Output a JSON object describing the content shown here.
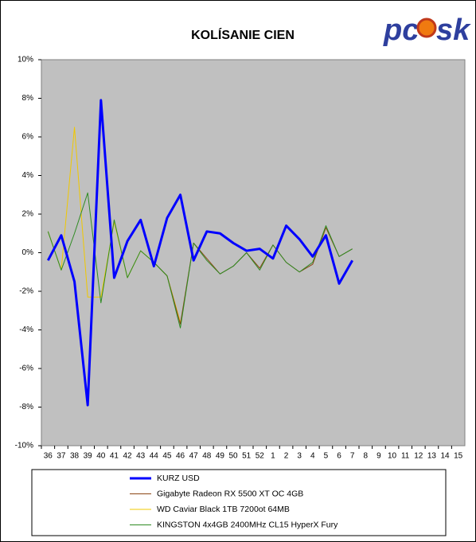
{
  "logo": [
    "pc",
    "sk"
  ],
  "chart_data": {
    "type": "line",
    "title": "KOLÍSANIE CIEN",
    "categories": [
      "36",
      "37",
      "38",
      "39",
      "40",
      "41",
      "42",
      "43",
      "44",
      "45",
      "46",
      "47",
      "48",
      "49",
      "50",
      "51",
      "52",
      "1",
      "2",
      "3",
      "4",
      "5",
      "6",
      "7",
      "8",
      "9",
      "10",
      "11",
      "12",
      "13",
      "14",
      "15"
    ],
    "ylim": [
      -10,
      10
    ],
    "yticks": [
      {
        "value": -10,
        "label": "-10%"
      },
      {
        "value": -8,
        "label": "-8%"
      },
      {
        "value": -6,
        "label": "-6%"
      },
      {
        "value": -4,
        "label": "-4%"
      },
      {
        "value": -2,
        "label": "-2%"
      },
      {
        "value": 0,
        "label": "0%"
      },
      {
        "value": 2,
        "label": "2%"
      },
      {
        "value": 4,
        "label": "4%"
      },
      {
        "value": 6,
        "label": "6%"
      },
      {
        "value": 8,
        "label": "8%"
      },
      {
        "value": 10,
        "label": "10%"
      }
    ],
    "series": [
      {
        "name": "KURZ USD",
        "color": "#0000ff",
        "width": 3,
        "values": [
          -0.4,
          0.9,
          -1.5,
          -7.9,
          7.9,
          -1.3,
          0.6,
          1.7,
          -0.7,
          1.8,
          3.0,
          -0.4,
          1.1,
          1.0,
          0.5,
          0.1,
          0.2,
          -0.3,
          1.4,
          0.7,
          -0.2,
          0.9,
          -1.6,
          -0.4,
          null,
          null,
          null,
          null,
          null,
          null,
          null,
          null
        ]
      },
      {
        "name": "Gigabyte Radeon RX 5500 XT OC 4GB",
        "color": "#8b4513",
        "width": 1,
        "values": [
          null,
          null,
          null,
          null,
          null,
          null,
          null,
          null,
          -0.5,
          -1.2,
          -3.7,
          0.5,
          -0.3,
          -1.1,
          -0.7,
          0.0,
          -0.8,
          0.4,
          -0.5,
          -1.0,
          -0.6,
          1.3,
          -0.2,
          0.2,
          null,
          null,
          null,
          null,
          null,
          null,
          null,
          null
        ]
      },
      {
        "name": "WD Caviar Black 1TB 7200ot 64MB",
        "color": "#f0c800",
        "width": 1,
        "values": [
          1.1,
          -0.9,
          6.5,
          -2.3,
          -2.3,
          1.6,
          -1.3,
          0.1,
          -0.5,
          -1.2,
          -3.6,
          null,
          null,
          null,
          null,
          null,
          null,
          null,
          null,
          null,
          null,
          null,
          null,
          null,
          null,
          null,
          null,
          null,
          null,
          null,
          null,
          null
        ]
      },
      {
        "name": "KINGSTON 4x4GB 2400MHz CL15 HyperX Fury",
        "color": "#2e8b22",
        "width": 1,
        "values": [
          1.1,
          -0.9,
          1.0,
          3.1,
          -2.6,
          1.7,
          -1.3,
          0.1,
          -0.5,
          -1.2,
          -3.9,
          0.5,
          -0.4,
          -1.1,
          -0.7,
          0.0,
          -0.9,
          0.4,
          -0.5,
          -1.0,
          -0.5,
          1.4,
          -0.2,
          0.2,
          null,
          null,
          null,
          null,
          null,
          null,
          null,
          null
        ]
      }
    ]
  }
}
